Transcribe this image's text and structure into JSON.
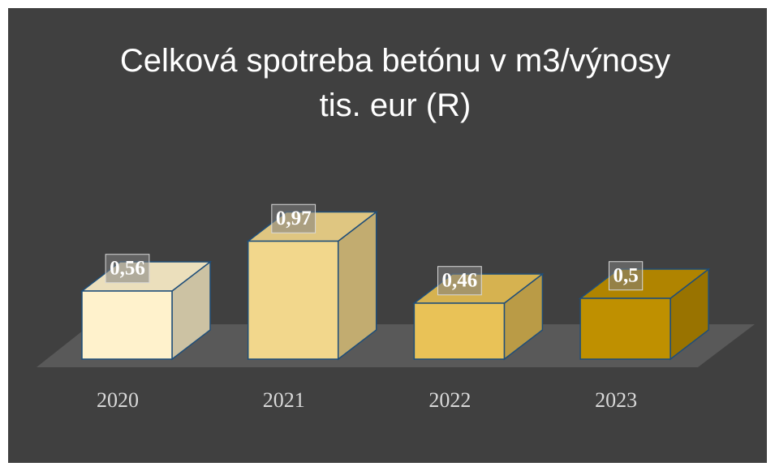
{
  "chart_data": {
    "type": "bar3d",
    "title_lines": [
      "Celková spotreba betónu v m3/výnosy",
      "tis. eur (R)"
    ],
    "categories": [
      "2020",
      "2021",
      "2022",
      "2023"
    ],
    "values": [
      0.56,
      0.97,
      0.46,
      0.5
    ],
    "value_labels": [
      "0,56",
      "0,97",
      "0,46",
      "0,5"
    ],
    "colors": [
      "#fff2cc",
      "#f2d78c",
      "#e9c257",
      "#bf9000"
    ]
  }
}
